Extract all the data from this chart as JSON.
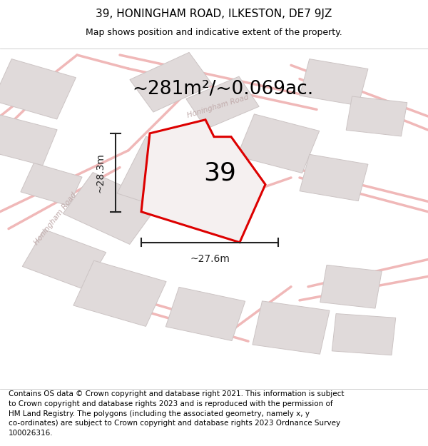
{
  "title": "39, HONINGHAM ROAD, ILKESTON, DE7 9JZ",
  "subtitle": "Map shows position and indicative extent of the property.",
  "area_text": "~281m²/~0.069ac.",
  "number_label": "39",
  "dim_h": "~28.3m",
  "dim_w": "~27.6m",
  "footer": "Contains OS data © Crown copyright and database right 2021. This information is subject\nto Crown copyright and database rights 2023 and is reproduced with the permission of\nHM Land Registry. The polygons (including the associated geometry, namely x, y\nco-ordinates) are subject to Crown copyright and database rights 2023 Ordnance Survey\n100026316.",
  "bg_color": "#ffffff",
  "map_bg": "#f7f5f5",
  "road_color": "#f0b8b8",
  "building_color": "#e0dada",
  "building_edge": "#ccc4c4",
  "property_fill": "#f5f0f0",
  "property_edge": "#dd0000",
  "dim_color": "#222222",
  "road_label_color": "#c0aaaa",
  "title_fontsize": 11,
  "subtitle_fontsize": 9,
  "area_fontsize": 19,
  "number_fontsize": 26,
  "dim_fontsize": 10,
  "footer_fontsize": 7.5
}
